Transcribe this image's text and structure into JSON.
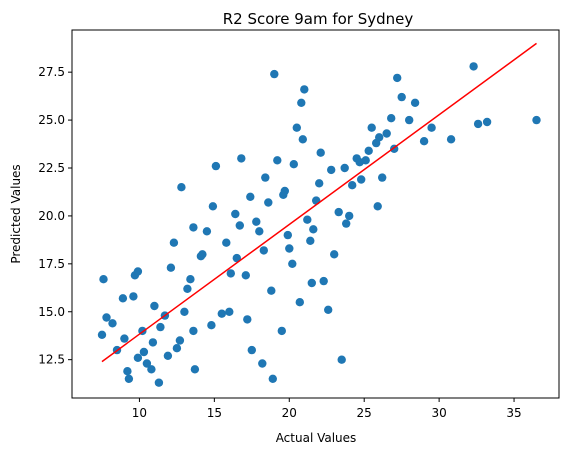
{
  "chart_data": {
    "type": "scatter",
    "title": "R2 Score 9am for Sydney",
    "xlabel": "Actual Values",
    "ylabel": "Predicted Values",
    "xlim": [
      5.5,
      38.0
    ],
    "ylim": [
      10.5,
      29.7
    ],
    "xticks": [
      10,
      15,
      20,
      25,
      30,
      35
    ],
    "yticks": [
      12.5,
      15.0,
      17.5,
      20.0,
      22.5,
      25.0,
      27.5
    ],
    "xtick_labels": [
      "10",
      "15",
      "20",
      "25",
      "30",
      "35"
    ],
    "ytick_labels": [
      "12.5",
      "15.0",
      "17.5",
      "20.0",
      "22.5",
      "25.0",
      "27.5"
    ],
    "grid": false,
    "colors": {
      "points": "#1f77b4",
      "fit_line": "#ff0000"
    },
    "fit_line": {
      "x": [
        7.5,
        36.5
      ],
      "y": [
        12.4,
        29.0
      ]
    },
    "points": {
      "x": [
        7.5,
        7.6,
        7.8,
        8.2,
        8.5,
        9.0,
        9.3,
        9.6,
        9.7,
        9.9,
        9.9,
        10.2,
        10.5,
        10.8,
        11.3,
        11.0,
        10.3,
        11.7,
        12.3,
        12.7,
        13.0,
        12.8,
        13.4,
        13.6,
        13.7,
        14.2,
        14.5,
        14.9,
        15.1,
        16.0,
        16.5,
        16.8,
        17.1,
        17.5,
        18.0,
        18.2,
        18.6,
        18.9,
        19.2,
        19.5,
        19.7,
        20.0,
        20.3,
        20.5,
        20.8,
        21.0,
        21.2,
        21.6,
        22.0,
        22.6,
        23.3,
        23.8,
        24.5,
        24.8,
        25.3,
        25.5,
        25.9,
        26.2,
        26.8,
        27.2,
        27.5,
        28.0,
        29.0,
        29.5,
        30.8,
        32.3,
        32.6,
        33.2,
        36.5,
        19.0,
        17.2,
        23.5,
        22.3,
        21.4,
        8.9,
        9.2,
        11.9,
        13.6,
        16.1,
        18.3,
        20.2,
        21.8,
        24.0,
        26.5,
        27.0,
        22.8,
        18.8,
        17.8,
        15.8,
        12.1,
        10.9,
        20.7,
        19.6,
        23.0,
        16.4,
        14.8,
        24.2,
        25.8,
        28.4,
        13.2,
        15.5,
        17.4,
        22.1,
        19.9,
        21.5,
        18.4,
        16.7,
        26.0,
        24.7,
        12.5,
        11.4,
        14.1,
        20.9,
        23.7,
        25.1
      ],
      "y": [
        13.8,
        16.7,
        14.7,
        14.4,
        13.0,
        13.6,
        11.5,
        15.8,
        16.9,
        17.1,
        12.6,
        14.0,
        12.3,
        12.0,
        11.3,
        15.3,
        12.9,
        14.8,
        18.6,
        13.5,
        15.0,
        21.5,
        16.7,
        19.4,
        12.0,
        18.0,
        19.2,
        20.5,
        22.6,
        15.0,
        17.8,
        23.0,
        16.9,
        13.0,
        19.2,
        12.3,
        20.7,
        11.5,
        22.9,
        14.0,
        21.3,
        18.3,
        22.7,
        24.6,
        25.9,
        26.6,
        19.8,
        19.3,
        21.7,
        15.1,
        20.2,
        19.6,
        23.0,
        21.9,
        23.4,
        24.6,
        20.5,
        22.0,
        25.1,
        27.2,
        26.2,
        25.0,
        23.9,
        24.6,
        24.0,
        27.8,
        24.8,
        24.9,
        25.0,
        27.4,
        14.6,
        12.5,
        16.6,
        18.7,
        15.7,
        11.9,
        12.7,
        14.0,
        17.0,
        18.2,
        17.5,
        20.8,
        20.0,
        24.3,
        23.5,
        22.4,
        16.1,
        19.7,
        18.6,
        17.3,
        13.4,
        15.5,
        21.1,
        18.0,
        20.1,
        14.3,
        21.6,
        23.8,
        25.9,
        16.2,
        14.9,
        21.0,
        23.3,
        19.0,
        16.5,
        22.0,
        19.5,
        24.1,
        22.8,
        13.1,
        14.2,
        17.9,
        24.0,
        22.5,
        22.9
      ]
    }
  }
}
